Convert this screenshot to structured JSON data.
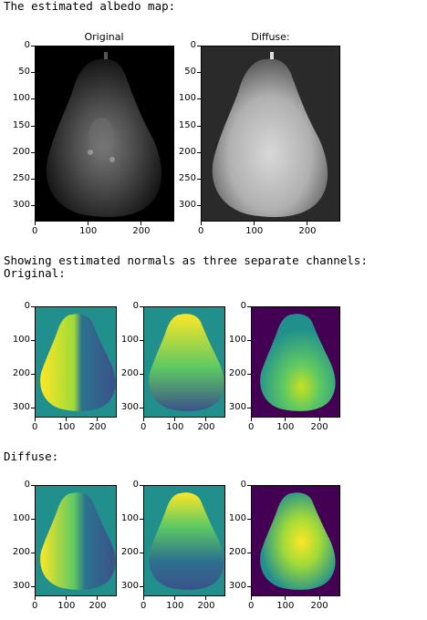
{
  "header_text": "The estimated albedo map:",
  "normals_text": "Showing estimated normals as three separate channels:",
  "original_label": "Original:",
  "diffuse_label": "Diffuse:",
  "albedo_titles": [
    "Original",
    "Diffuse:"
  ],
  "ticks": {
    "albedo_y": [
      "0",
      "50",
      "100",
      "150",
      "200",
      "250",
      "300"
    ],
    "albedo_x": [
      "0",
      "100",
      "200"
    ],
    "normal_y": [
      "0",
      "100",
      "200",
      "300"
    ],
    "normal_x": [
      "0",
      "100",
      "200"
    ]
  },
  "colors": {
    "viridis_dark": "#440154",
    "viridis_mid": "#21908d",
    "viridis_yellow": "#fde725",
    "viridis_green": "#5ec962",
    "viridis_blue": "#3b528b"
  }
}
